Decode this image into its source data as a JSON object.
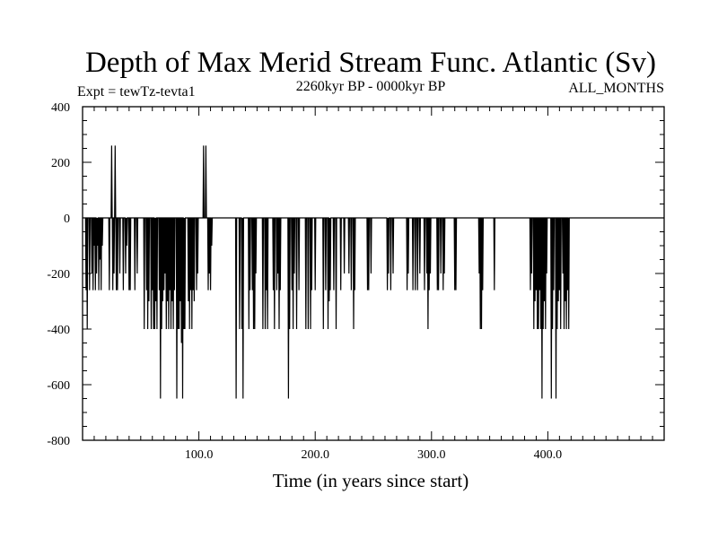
{
  "chart_data": {
    "type": "line",
    "title": "Depth of Max Merid Stream Func. Atlantic (Sv)",
    "subtitle_left": "Expt = tewTz-tevta1",
    "subtitle_center": "2260kyr BP - 0000kyr BP",
    "subtitle_right": "ALL_MONTHS",
    "xlabel": "Time (in years since start)",
    "ylabel": "",
    "xlim": [
      0,
      500
    ],
    "ylim": [
      -800,
      400
    ],
    "x_ticks": [
      100,
      200,
      300,
      400
    ],
    "x_tick_labels": [
      "100.0",
      "200.0",
      "300.0",
      "400.0"
    ],
    "y_ticks": [
      400,
      200,
      0,
      -200,
      -400,
      -600,
      -800
    ],
    "y_tick_labels": [
      "400",
      "200",
      "0",
      "-200",
      "-400",
      "-600",
      "-800"
    ],
    "grid": false,
    "series": [
      {
        "spikes": [
          [
            3,
            -260
          ],
          [
            4,
            -400
          ],
          [
            6,
            -260
          ],
          [
            8,
            -200
          ],
          [
            9,
            -260
          ],
          [
            10,
            -100
          ],
          [
            11,
            -260
          ],
          [
            12,
            -200
          ],
          [
            13,
            -100
          ],
          [
            14,
            -260
          ],
          [
            15,
            -150
          ],
          [
            16,
            -260
          ],
          [
            17,
            -100
          ],
          [
            23,
            -260
          ],
          [
            25,
            260
          ],
          [
            26,
            -260
          ],
          [
            27,
            -200
          ],
          [
            28,
            260
          ],
          [
            29,
            -260
          ],
          [
            30,
            -260
          ],
          [
            32,
            -200
          ],
          [
            35,
            -260
          ],
          [
            37,
            -200
          ],
          [
            38,
            -100
          ],
          [
            40,
            -260
          ],
          [
            41,
            -260
          ],
          [
            45,
            -260
          ],
          [
            47,
            -200
          ],
          [
            53,
            -400
          ],
          [
            55,
            -260
          ],
          [
            56,
            -400
          ],
          [
            57,
            -300
          ],
          [
            59,
            -400
          ],
          [
            60,
            -260
          ],
          [
            61,
            -400
          ],
          [
            62,
            -400
          ],
          [
            63,
            -300
          ],
          [
            64,
            -400
          ],
          [
            66,
            -260
          ],
          [
            67,
            -650
          ],
          [
            68,
            -400
          ],
          [
            69,
            -300
          ],
          [
            70,
            -260
          ],
          [
            71,
            -200
          ],
          [
            72,
            -400
          ],
          [
            73,
            -300
          ],
          [
            74,
            -400
          ],
          [
            75,
            -260
          ],
          [
            76,
            -400
          ],
          [
            77,
            -300
          ],
          [
            78,
            -400
          ],
          [
            79,
            -260
          ],
          [
            81,
            -650
          ],
          [
            82,
            -400
          ],
          [
            83,
            -400
          ],
          [
            84,
            -300
          ],
          [
            85,
            -450
          ],
          [
            86,
            -650
          ],
          [
            87,
            -400
          ],
          [
            88,
            -400
          ],
          [
            91,
            -300
          ],
          [
            92,
            -400
          ],
          [
            93,
            -260
          ],
          [
            94,
            -400
          ],
          [
            95,
            -260
          ],
          [
            96,
            -300
          ],
          [
            98,
            -260
          ],
          [
            99,
            -200
          ],
          [
            104,
            260
          ],
          [
            106,
            260
          ],
          [
            108,
            -260
          ],
          [
            109,
            -200
          ],
          [
            110,
            -260
          ],
          [
            111,
            -100
          ],
          [
            132,
            -650
          ],
          [
            135,
            -400
          ],
          [
            137,
            -400
          ],
          [
            138,
            -650
          ],
          [
            143,
            -400
          ],
          [
            144,
            -260
          ],
          [
            146,
            -260
          ],
          [
            147,
            -400
          ],
          [
            148,
            -400
          ],
          [
            149,
            -200
          ],
          [
            155,
            -400
          ],
          [
            157,
            -400
          ],
          [
            158,
            -260
          ],
          [
            159,
            -400
          ],
          [
            164,
            -260
          ],
          [
            165,
            -400
          ],
          [
            167,
            -260
          ],
          [
            168,
            -200
          ],
          [
            169,
            -400
          ],
          [
            170,
            -260
          ],
          [
            177,
            -650
          ],
          [
            178,
            -400
          ],
          [
            180,
            -260
          ],
          [
            181,
            -400
          ],
          [
            182,
            -200
          ],
          [
            184,
            -400
          ],
          [
            186,
            -260
          ],
          [
            192,
            -400
          ],
          [
            194,
            -400
          ],
          [
            196,
            -400
          ],
          [
            197,
            -260
          ],
          [
            200,
            -260
          ],
          [
            207,
            -400
          ],
          [
            209,
            -260
          ],
          [
            211,
            -400
          ],
          [
            212,
            -300
          ],
          [
            213,
            -260
          ],
          [
            216,
            -260
          ],
          [
            218,
            -400
          ],
          [
            222,
            -260
          ],
          [
            225,
            -200
          ],
          [
            229,
            -200
          ],
          [
            231,
            -260
          ],
          [
            233,
            -400
          ],
          [
            234,
            -260
          ],
          [
            245,
            -260
          ],
          [
            246,
            -260
          ],
          [
            248,
            -200
          ],
          [
            262,
            -260
          ],
          [
            263,
            -200
          ],
          [
            265,
            -260
          ],
          [
            267,
            -200
          ],
          [
            279,
            -260
          ],
          [
            280,
            -200
          ],
          [
            284,
            -260
          ],
          [
            286,
            -260
          ],
          [
            288,
            -260
          ],
          [
            290,
            -200
          ],
          [
            294,
            -260
          ],
          [
            296,
            -200
          ],
          [
            297,
            -400
          ],
          [
            298,
            -260
          ],
          [
            299,
            -200
          ],
          [
            305,
            -260
          ],
          [
            306,
            -260
          ],
          [
            308,
            -200
          ],
          [
            310,
            -260
          ],
          [
            311,
            -200
          ],
          [
            320,
            -260
          ],
          [
            321,
            -260
          ],
          [
            341,
            -200
          ],
          [
            342,
            -400
          ],
          [
            343,
            -400
          ],
          [
            344,
            -260
          ],
          [
            354,
            -260
          ],
          [
            385,
            -260
          ],
          [
            386,
            -200
          ],
          [
            388,
            -400
          ],
          [
            389,
            -300
          ],
          [
            390,
            -260
          ],
          [
            391,
            -400
          ],
          [
            392,
            -400
          ],
          [
            393,
            -260
          ],
          [
            394,
            -400
          ],
          [
            395,
            -650
          ],
          [
            396,
            -400
          ],
          [
            397,
            -300
          ],
          [
            398,
            -400
          ],
          [
            399,
            -200
          ],
          [
            403,
            -650
          ],
          [
            404,
            -400
          ],
          [
            405,
            -260
          ],
          [
            407,
            -650
          ],
          [
            408,
            -400
          ],
          [
            409,
            -300
          ],
          [
            410,
            -260
          ],
          [
            411,
            -400
          ],
          [
            413,
            -200
          ],
          [
            414,
            -400
          ],
          [
            415,
            -300
          ],
          [
            416,
            -400
          ],
          [
            417,
            -260
          ],
          [
            418,
            -400
          ]
        ]
      }
    ]
  }
}
